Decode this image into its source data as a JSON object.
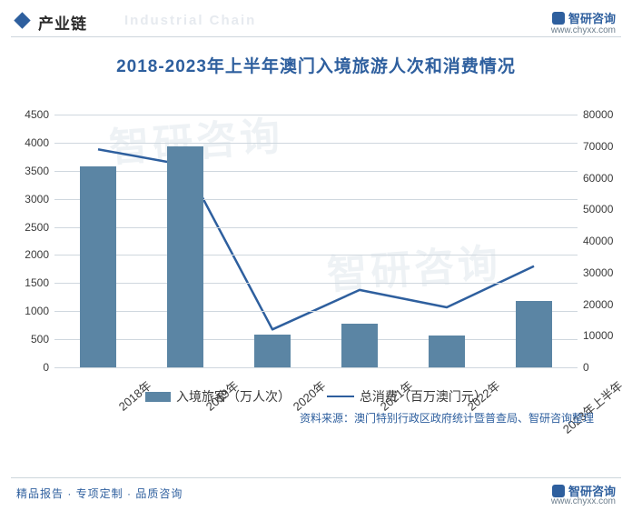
{
  "meta": {
    "section_label": "产业链",
    "section_ghost": "Industrial Chain",
    "brand_name": "智研咨询",
    "brand_url": "www.chyxx.com",
    "footer_tagline": "精品报告 · 专项定制 · 品质咨询",
    "source_note": "资料来源：澳门特别行政区政府统计暨普查局、智研咨询整理"
  },
  "chart": {
    "type": "bar+line-dual-axis",
    "title": "2018-2023年上半年澳门入境旅游人次和消费情况",
    "title_color": "#2e5f9e",
    "title_fontsize": 19,
    "background_color": "#ffffff",
    "grid_color": "#cfd7de",
    "categories": [
      "2018年",
      "2019年",
      "2020年",
      "2021年",
      "2022年",
      "2023年上半年"
    ],
    "series_bar": {
      "name": "入境旅客（万人次）",
      "color": "#5b85a4",
      "bar_width_ratio": 0.42,
      "values": [
        3580,
        3940,
        590,
        770,
        570,
        1180
      ]
    },
    "series_line": {
      "name": "总消费（百万澳门元）",
      "color": "#2e5f9e",
      "line_width": 2.5,
      "marker": "none",
      "values": [
        69000,
        64000,
        12000,
        24500,
        19000,
        32000
      ]
    },
    "y_left": {
      "min": 0,
      "max": 4500,
      "step": 500,
      "label_fontsize": 12
    },
    "y_right": {
      "min": 0,
      "max": 80000,
      "step": 10000,
      "label_fontsize": 12
    },
    "x_label_rotation_deg": -40,
    "legend": {
      "position": "bottom",
      "bar_label": "入境旅客（万人次）",
      "line_label": "总消费（百万澳门元）"
    },
    "watermark_text": "智研咨询"
  }
}
